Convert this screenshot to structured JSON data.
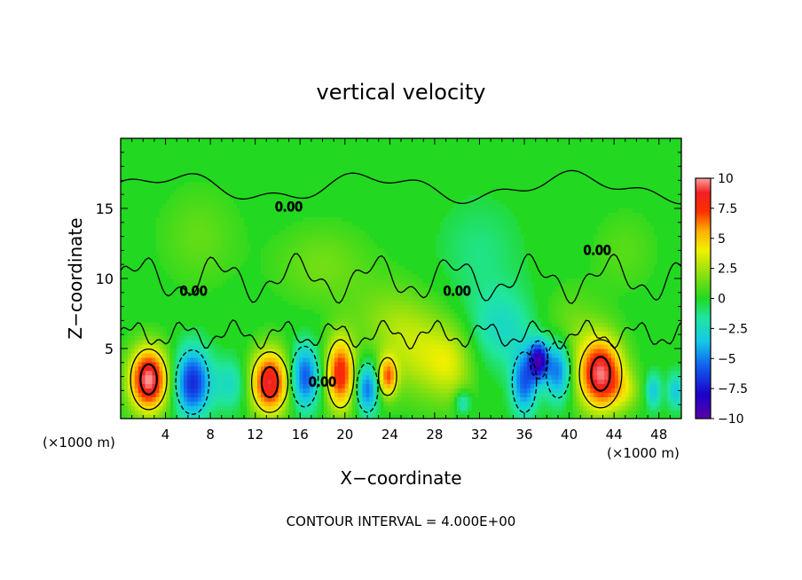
{
  "chart_data": {
    "type": "heatmap",
    "title": "vertical velocity",
    "xlabel": "X−coordinate",
    "ylabel": "Z−coordinate",
    "x_unit_left": "(×1000 m)",
    "x_unit_right": "(×1000 m)",
    "footer": "CONTOUR INTERVAL = 4.000E+00",
    "xlim": [
      0,
      50
    ],
    "ylim": [
      0,
      20
    ],
    "x_ticks": [
      4,
      8,
      12,
      16,
      20,
      24,
      28,
      32,
      36,
      40,
      44,
      48
    ],
    "x_tick_labels": [
      "4",
      "8",
      "12",
      "16",
      "20",
      "24",
      "28",
      "32",
      "36",
      "40",
      "44",
      "48"
    ],
    "y_ticks": [
      5,
      10,
      15
    ],
    "y_tick_labels": [
      "5",
      "10",
      "15"
    ],
    "colorbar": {
      "min": -10,
      "max": 10,
      "tick_values": [
        10,
        7.5,
        5,
        2.5,
        0,
        -2.5,
        -5,
        -7.5,
        -10
      ],
      "tick_labels": [
        "10",
        "7.5",
        "5",
        "2.5",
        "0",
        "−2.5",
        "−5",
        "−7.5",
        "−10"
      ]
    },
    "contour_labels": [
      {
        "text": "0.00",
        "x": 15,
        "y": 14.8
      },
      {
        "text": "0.00",
        "x": 42.5,
        "y": 11.7
      },
      {
        "text": "0.00",
        "x": 6.5,
        "y": 8.8
      },
      {
        "text": "0.00",
        "x": 30,
        "y": 8.8
      },
      {
        "text": "0.00",
        "x": 18,
        "y": 2.3
      }
    ],
    "cells": [
      {
        "x": 2.5,
        "z": 2.8,
        "w": 10,
        "sx": 1.2,
        "sz": 1.6
      },
      {
        "x": 6.4,
        "z": 2.6,
        "w": -7,
        "sx": 1.1,
        "sz": 1.7
      },
      {
        "x": 9.8,
        "z": 2.5,
        "w": -2.5,
        "sx": 1.1,
        "sz": 1.3
      },
      {
        "x": 13.3,
        "z": 2.6,
        "w": 9,
        "sx": 1.2,
        "sz": 1.6
      },
      {
        "x": 16.4,
        "z": 3.0,
        "w": -6,
        "sx": 0.9,
        "sz": 1.6
      },
      {
        "x": 19.6,
        "z": 3.2,
        "w": 8,
        "sx": 0.9,
        "sz": 1.8
      },
      {
        "x": 22.0,
        "z": 2.2,
        "w": -5.5,
        "sx": 0.7,
        "sz": 1.3
      },
      {
        "x": 23.8,
        "z": 3.0,
        "w": 6,
        "sx": 0.6,
        "sz": 1.0
      },
      {
        "x": 26.5,
        "z": 4.5,
        "w": 2.5,
        "sx": 2.0,
        "sz": 2.2
      },
      {
        "x": 29.5,
        "z": 4.0,
        "w": 3,
        "sx": 1.5,
        "sz": 2.0
      },
      {
        "x": 30.5,
        "z": 1.2,
        "w": -3,
        "sx": 0.5,
        "sz": 0.6
      },
      {
        "x": 34.0,
        "z": 6.5,
        "w": -2.5,
        "sx": 2.2,
        "sz": 2.0
      },
      {
        "x": 36.0,
        "z": 2.6,
        "w": -5.5,
        "sx": 0.8,
        "sz": 1.6
      },
      {
        "x": 37.3,
        "z": 4.2,
        "w": -8,
        "sx": 0.6,
        "sz": 1.0
      },
      {
        "x": 39.0,
        "z": 3.5,
        "w": -5.5,
        "sx": 0.8,
        "sz": 1.5
      },
      {
        "x": 42.8,
        "z": 3.2,
        "w": 9.5,
        "sx": 1.4,
        "sz": 1.8
      },
      {
        "x": 45.0,
        "z": 2.0,
        "w": 2,
        "sx": 1.0,
        "sz": 1.0
      },
      {
        "x": 47.5,
        "z": 2.0,
        "w": -3.5,
        "sx": 0.5,
        "sz": 0.9
      },
      {
        "x": 49.5,
        "z": 2.0,
        "w": -3.5,
        "sx": 0.5,
        "sz": 0.9
      },
      {
        "x": 18.0,
        "z": 11.0,
        "w": 1.5,
        "sx": 3.0,
        "sz": 2.0
      },
      {
        "x": 24.0,
        "z": 7.0,
        "w": 1.8,
        "sx": 2.5,
        "sz": 2.0
      },
      {
        "x": 40.0,
        "z": 6.5,
        "w": 1.5,
        "sx": 2.0,
        "sz": 2.0
      },
      {
        "x": 7.0,
        "z": 13.0,
        "w": 1.2,
        "sx": 2.5,
        "sz": 2.5
      },
      {
        "x": 32.0,
        "z": 12.0,
        "w": -1.2,
        "sx": 2.5,
        "sz": 2.5
      },
      {
        "x": 45.0,
        "z": 12.0,
        "w": 1.0,
        "sx": 2.0,
        "sz": 2.0
      }
    ]
  }
}
